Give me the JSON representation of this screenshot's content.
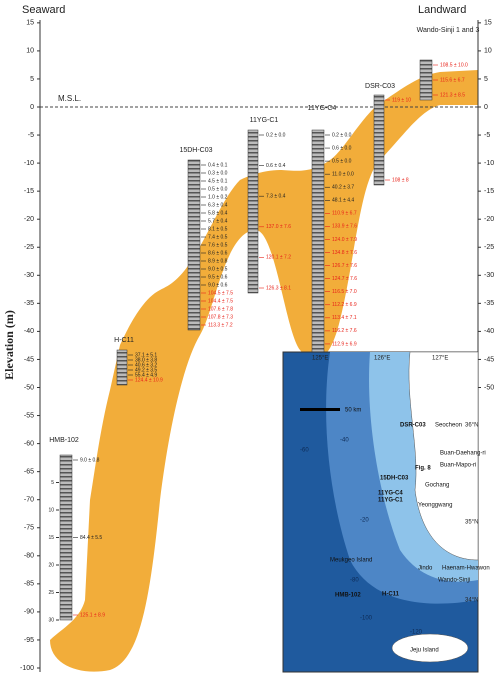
{
  "header": {
    "left": "Seaward",
    "right": "Landward"
  },
  "axis": {
    "title": "Elevation (m)",
    "msl": "M.S.L.",
    "left_ticks": [
      15,
      10,
      5,
      0,
      -5,
      -10,
      -15,
      -20,
      -25,
      -30,
      -35,
      -40,
      -45,
      -50,
      -55,
      -60,
      -65,
      -70,
      -75,
      -80,
      -85,
      -90,
      -95,
      -100
    ],
    "right_ticks": [
      15,
      10,
      5,
      0,
      -5,
      -10,
      -15,
      -20,
      -25,
      -30,
      -35,
      -40,
      -45,
      -50
    ]
  },
  "depth_ticks": [
    5,
    10,
    15,
    20,
    25,
    30
  ],
  "cores": [
    {
      "name": "HMB-102",
      "ages": [
        "9.0 ± 0.8",
        "84.4 ± 5.5"
      ],
      "red_ages": [
        "125.1 ± 8.9"
      ]
    },
    {
      "name": "H-C11",
      "ages": [
        "37.1 ± 5.1",
        "38.0 ± 3.8",
        "40.6 ± 3.2",
        "49.2 ± 3.5",
        "55.4 ± 4.9"
      ],
      "red_ages": [
        "124.4 ± 10.9"
      ]
    },
    {
      "name": "15DH-C03",
      "ages": [
        "0.4 ± 0.1",
        "0.3 ± 0.0",
        "4.5 ± 0.1",
        "0.5 ± 0.0",
        "1.0 ± 0.2",
        "6.3 ± 0.4",
        "5.8 ± 0.4",
        "5.7 ± 0.4",
        "8.1 ± 0.5",
        "7.4 ± 0.5",
        "7.6 ± 0.5",
        "8.6 ± 0.6",
        "8.9 ± 0.8",
        "9.0 ± 0.5",
        "9.5 ± 0.6",
        "9.0 ± 0.6"
      ],
      "red_ages": [
        "104.5 ± 7.5",
        "104.4 ± 7.5",
        "107.6 ± 7.8",
        "107.8 ± 7.3",
        "113.3 ± 7.2"
      ]
    },
    {
      "name": "11YG-C1",
      "ages": [
        "0.2 ± 0.0",
        "0.6 ± 0.4",
        "7.3 ± 0.4"
      ],
      "red_ages": [
        "137.0 ± 7.6",
        "120.1 ± 7.2",
        "126.3 ± 8.1"
      ]
    },
    {
      "name": "11YG-C4",
      "ages": [
        "0.2 ± 0.0",
        "0.6 ± 0.0",
        "0.5 ± 0.0",
        "11.0 ± 0.0",
        "40.2 ± 3.7",
        "48.1 ± 4.4"
      ],
      "red_ages": [
        "110.9 ± 6.7",
        "133.9 ± 7.6",
        "124.0 ± 7.9",
        "134.8 ± 7.6",
        "126.7 ± 7.6",
        "124.7 ± 7.6",
        "116.5 ± 7.0",
        "112.2 ± 6.9",
        "113.4 ± 7.1",
        "116.2 ± 7.6",
        "112.9 ± 6.9",
        "113.1 ± 7.3"
      ]
    },
    {
      "name": "DSR-C03",
      "ages": [],
      "red_ages": [
        "119 ± 10",
        "108 ± 8"
      ]
    },
    {
      "name": "Wando-Sinji 1 and 3",
      "ages": [],
      "red_ages": [
        "108.5 ± 10.0",
        "115.6 ± 6.7",
        "121.3 ± 8.5"
      ]
    }
  ],
  "map": {
    "lon_labels": [
      "125°E",
      "126°E",
      "127°E"
    ],
    "lat_labels": [
      "36°N",
      "35°N",
      "34°N"
    ],
    "places": [
      "DSR-C03",
      "Seocheon",
      "Buan-Daehang-ri",
      "Buan-Mapo-ri",
      "Fig. 8",
      "15DH-C03",
      "Gochang",
      "11YG-C4",
      "11YG-C1",
      "Yeonggwang",
      "Jindo",
      "Haenam-Hwawon",
      "Wando-Sinji",
      "Meukgeo Island",
      "HMB-102",
      "H-C11",
      "Jeju Island"
    ],
    "depths": [
      "-20",
      "-40",
      "-60",
      "-80",
      "-100",
      "-120"
    ],
    "scale": "50 km"
  }
}
